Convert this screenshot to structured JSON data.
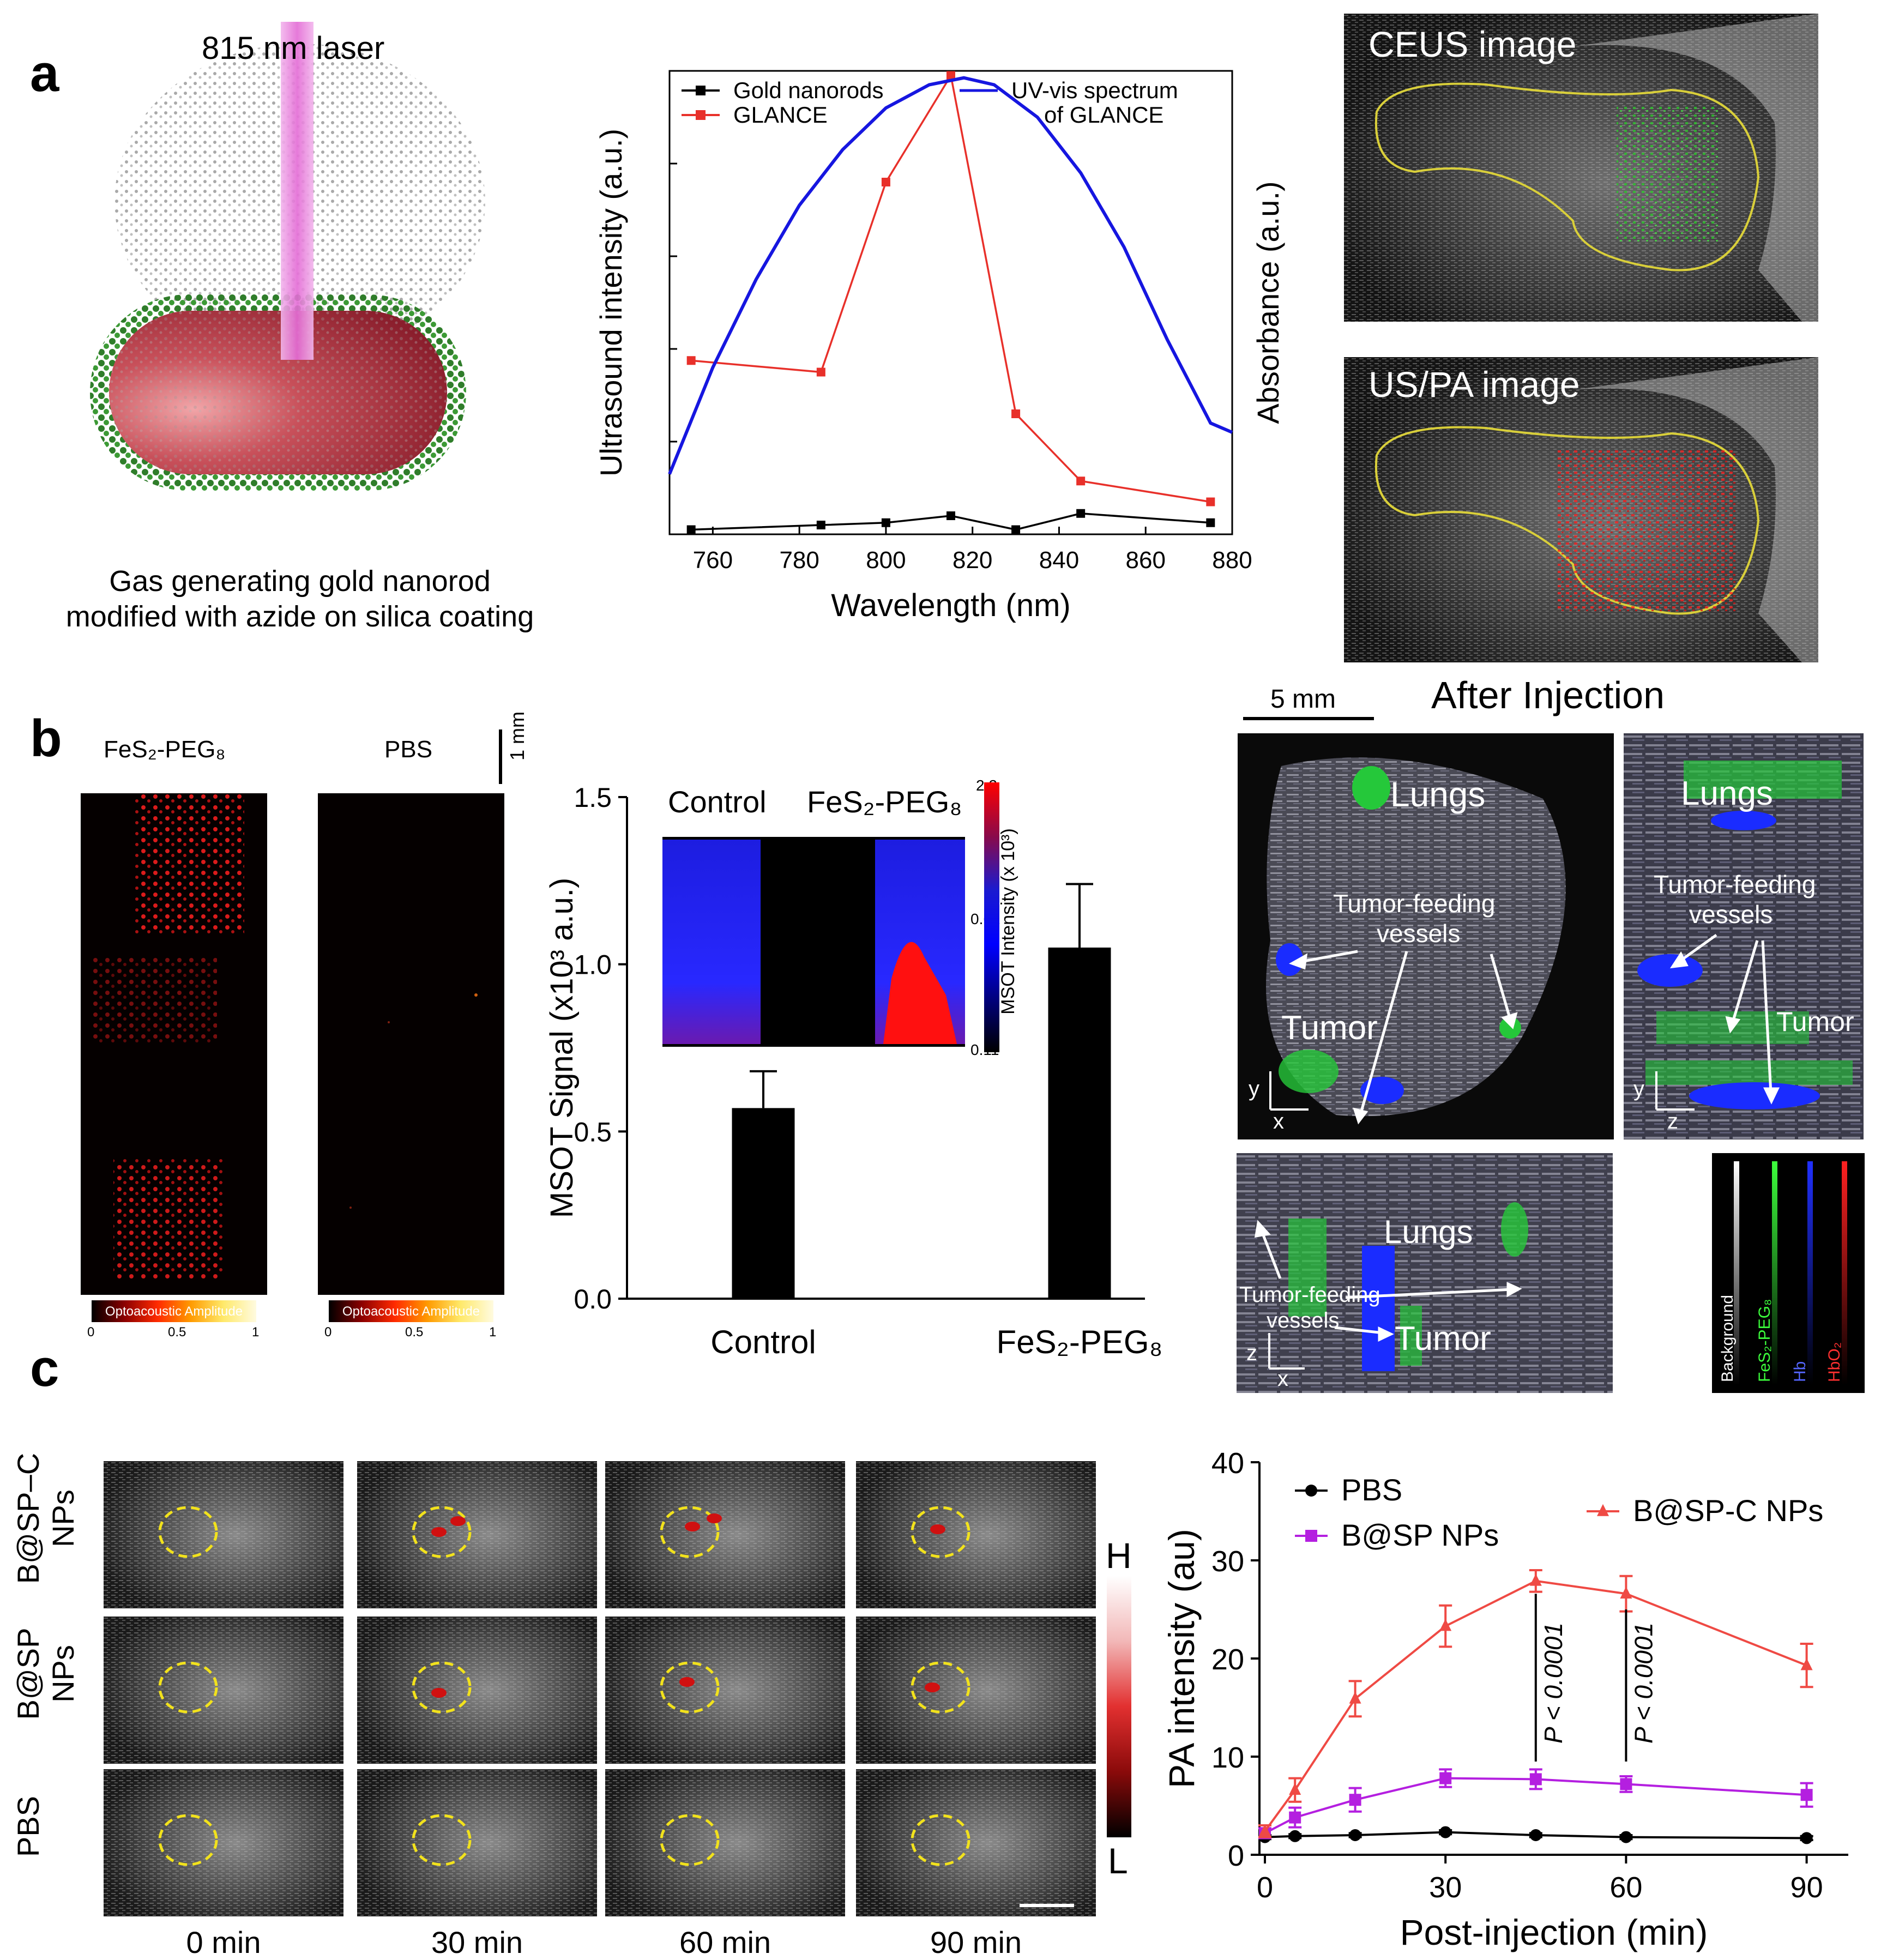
{
  "panel_labels": {
    "a": "a",
    "b": "b",
    "c": "c"
  },
  "panel_a": {
    "laser_label": "815 nm laser",
    "caption_line1": "Gas generating gold nanorod",
    "caption_line2": "modified with azide on silica coating",
    "ceus_label": "CEUS image",
    "uspa_label": "US/PA image"
  },
  "panel_b": {
    "feS2_label": "FeS₂-PEG₈",
    "pbs_label": "PBS",
    "scale_1mm": "1 mm",
    "colorbar_title": "Optoacoustic Amplitude",
    "colorbar_ticks": [
      "0",
      "0.5",
      "1"
    ],
    "scale_5mm": "5 mm",
    "after_injection": "After Injection",
    "lungs": "Lungs",
    "tumor_feeding_vessels_1": "Tumor-feeding",
    "tumor_feeding_vessels_2": "vessels",
    "tumor": "Tumor",
    "tumor_short": "Tumor",
    "axis_y": "y",
    "axis_x": "x",
    "axis_z": "z",
    "legend_channels": [
      "Background",
      "FeS₂-PEG₈",
      "Hb",
      "HbO₂"
    ]
  },
  "panel_c": {
    "row_labels": [
      "B@SP–C NPs",
      "B@SP NPs",
      "PBS"
    ],
    "time_labels": [
      "0 min",
      "30 min",
      "60 min",
      "90 min"
    ],
    "colorbar_high": "H",
    "colorbar_low": "L"
  },
  "chart_data": [
    {
      "id": "a-spectrum",
      "type": "line",
      "xlabel": "Wavelength (nm)",
      "ylabel": "Ultrasound intensity (a.u.)",
      "y2label": "Absorbance (a.u.)",
      "xlim": [
        750,
        880
      ],
      "xticks": [
        760,
        780,
        800,
        820,
        840,
        860,
        880
      ],
      "ylim": [
        0,
        1
      ],
      "legend": "top",
      "series": [
        {
          "name": "Gold nanorods",
          "color": "#000000",
          "marker": "square",
          "x": [
            755,
            785,
            800,
            815,
            830,
            845,
            875
          ],
          "y": [
            0.01,
            0.02,
            0.025,
            0.04,
            0.01,
            0.045,
            0.025
          ]
        },
        {
          "name": "GLANCE",
          "color": "#e8302a",
          "marker": "square",
          "x": [
            755,
            785,
            800,
            815,
            830,
            845,
            875
          ],
          "y": [
            0.375,
            0.35,
            0.76,
            0.99,
            0.26,
            0.115,
            0.07
          ]
        },
        {
          "name": "UV-vis spectrum\nof GLANCE",
          "color": "#1616e0",
          "marker": "none",
          "x": [
            750,
            760,
            770,
            780,
            790,
            800,
            810,
            818,
            825,
            835,
            845,
            855,
            865,
            875,
            880
          ],
          "y": [
            0.13,
            0.36,
            0.55,
            0.71,
            0.83,
            0.92,
            0.97,
            0.985,
            0.97,
            0.9,
            0.78,
            0.62,
            0.42,
            0.24,
            0.22
          ]
        }
      ]
    },
    {
      "id": "b-msot",
      "type": "bar",
      "categories": [
        "Control",
        "FeS₂-PEG₈"
      ],
      "values": [
        0.57,
        1.05
      ],
      "errors": [
        0.11,
        0.19
      ],
      "ylabel": "MSOT Signal (x10³ a.u.)",
      "ylim": [
        0,
        1.5
      ],
      "yticks": [
        "0.0",
        "0.5",
        "1.0",
        "1.5"
      ],
      "inset": {
        "labels": [
          "Control",
          "FeS₂-PEG₈"
        ],
        "colorbar_title": "MSOT Intensity (x 10³)",
        "colorbar_ticks": [
          "2.2",
          "0.61",
          "0.11"
        ]
      }
    },
    {
      "id": "c-pa",
      "type": "line",
      "xlabel": "Post-injection (min)",
      "ylabel": "PA intensity (au)",
      "xlim": [
        0,
        90
      ],
      "xticks": [
        0,
        30,
        60,
        90
      ],
      "ylim": [
        0,
        40
      ],
      "yticks": [
        0,
        10,
        20,
        30,
        40
      ],
      "legend": "top",
      "series": [
        {
          "name": "PBS",
          "color": "#000000",
          "marker": "circle",
          "x": [
            0,
            5,
            15,
            30,
            45,
            60,
            90
          ],
          "y": [
            1.8,
            1.9,
            2.0,
            2.3,
            2.0,
            1.8,
            1.7
          ],
          "err": [
            0.2,
            0.2,
            0.2,
            0.2,
            0.2,
            0.2,
            0.2
          ]
        },
        {
          "name": "B@SP NPs",
          "color": "#b41fe0",
          "marker": "square",
          "x": [
            0,
            5,
            15,
            30,
            45,
            60,
            90
          ],
          "y": [
            2.2,
            3.8,
            5.6,
            7.8,
            7.7,
            7.2,
            6.1
          ],
          "err": [
            0.5,
            1.0,
            1.2,
            0.9,
            1.0,
            0.8,
            1.2
          ]
        },
        {
          "name": "B@SP-C NPs",
          "color": "#ef4a44",
          "marker": "triangle",
          "x": [
            0,
            5,
            15,
            30,
            45,
            60,
            90
          ],
          "y": [
            2.4,
            6.6,
            15.9,
            23.3,
            27.9,
            26.6,
            19.3
          ],
          "err": [
            0.6,
            1.2,
            1.8,
            2.1,
            1.1,
            1.8,
            2.2
          ]
        }
      ],
      "annotations": [
        "P < 0.0001",
        "P < 0.0001"
      ]
    }
  ]
}
